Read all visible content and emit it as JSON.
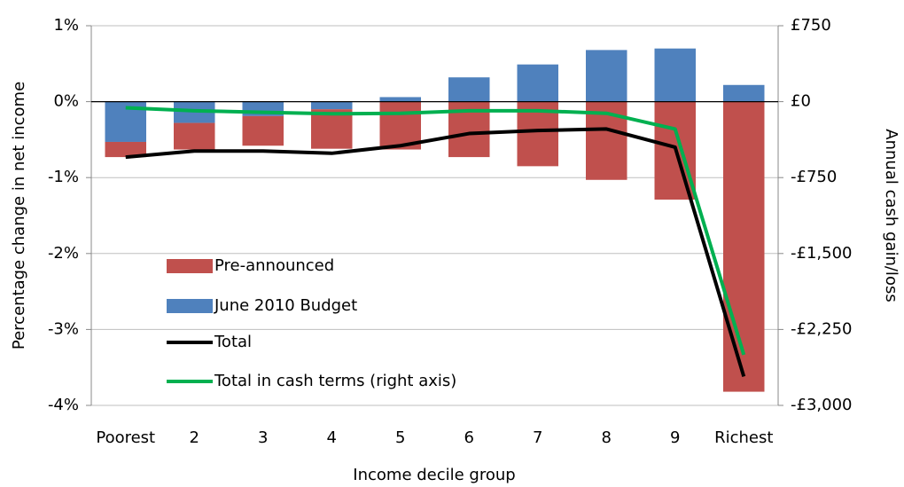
{
  "chart_data": {
    "type": "bar",
    "x_label": "Income decile group",
    "y_label": "Percentage change in net income",
    "y2_label": "Annual cash gain/loss",
    "categories": [
      "Poorest",
      "2",
      "3",
      "4",
      "5",
      "6",
      "7",
      "8",
      "9",
      "Richest"
    ],
    "series": [
      {
        "name": "Pre-announced",
        "type": "bar",
        "color": "#c0504d",
        "values": [
          -0.2,
          -0.35,
          -0.39,
          -0.52,
          -0.63,
          -0.73,
          -0.85,
          -1.03,
          -1.29,
          -3.82
        ]
      },
      {
        "name": "June 2010 Budget",
        "type": "bar",
        "color": "#4f81bd",
        "values": [
          -0.53,
          -0.28,
          -0.19,
          -0.1,
          0.06,
          0.32,
          0.49,
          0.68,
          0.7,
          0.22
        ]
      },
      {
        "name": "Total",
        "type": "line",
        "color": "#000000",
        "values": [
          -0.73,
          -0.65,
          -0.65,
          -0.68,
          -0.58,
          -0.42,
          -0.38,
          -0.36,
          -0.6,
          -3.62
        ]
      },
      {
        "name": "Total in cash terms (right axis)",
        "type": "line",
        "color": "#00b050",
        "axis": "y2",
        "values": [
          -60,
          -90,
          -105,
          -120,
          -115,
          -90,
          -90,
          -115,
          -270,
          -2500
        ]
      }
    ],
    "ylim": [
      -4,
      1
    ],
    "yticks": [
      {
        "value": 1,
        "label": "1%"
      },
      {
        "value": 0,
        "label": "0%"
      },
      {
        "value": -1,
        "label": "-1%"
      },
      {
        "value": -2,
        "label": "-2%"
      },
      {
        "value": -3,
        "label": "-3%"
      },
      {
        "value": -4,
        "label": "-4%"
      }
    ],
    "y2lim": [
      -3000,
      750
    ],
    "y2ticks": [
      {
        "value": 750,
        "label": "£750"
      },
      {
        "value": 0,
        "label": "£0"
      },
      {
        "value": -750,
        "label": "-£750"
      },
      {
        "value": -1500,
        "label": "-£1,500"
      },
      {
        "value": -2250,
        "label": "-£2,250"
      },
      {
        "value": -3000,
        "label": "-£3,000"
      }
    ],
    "grid": true
  }
}
